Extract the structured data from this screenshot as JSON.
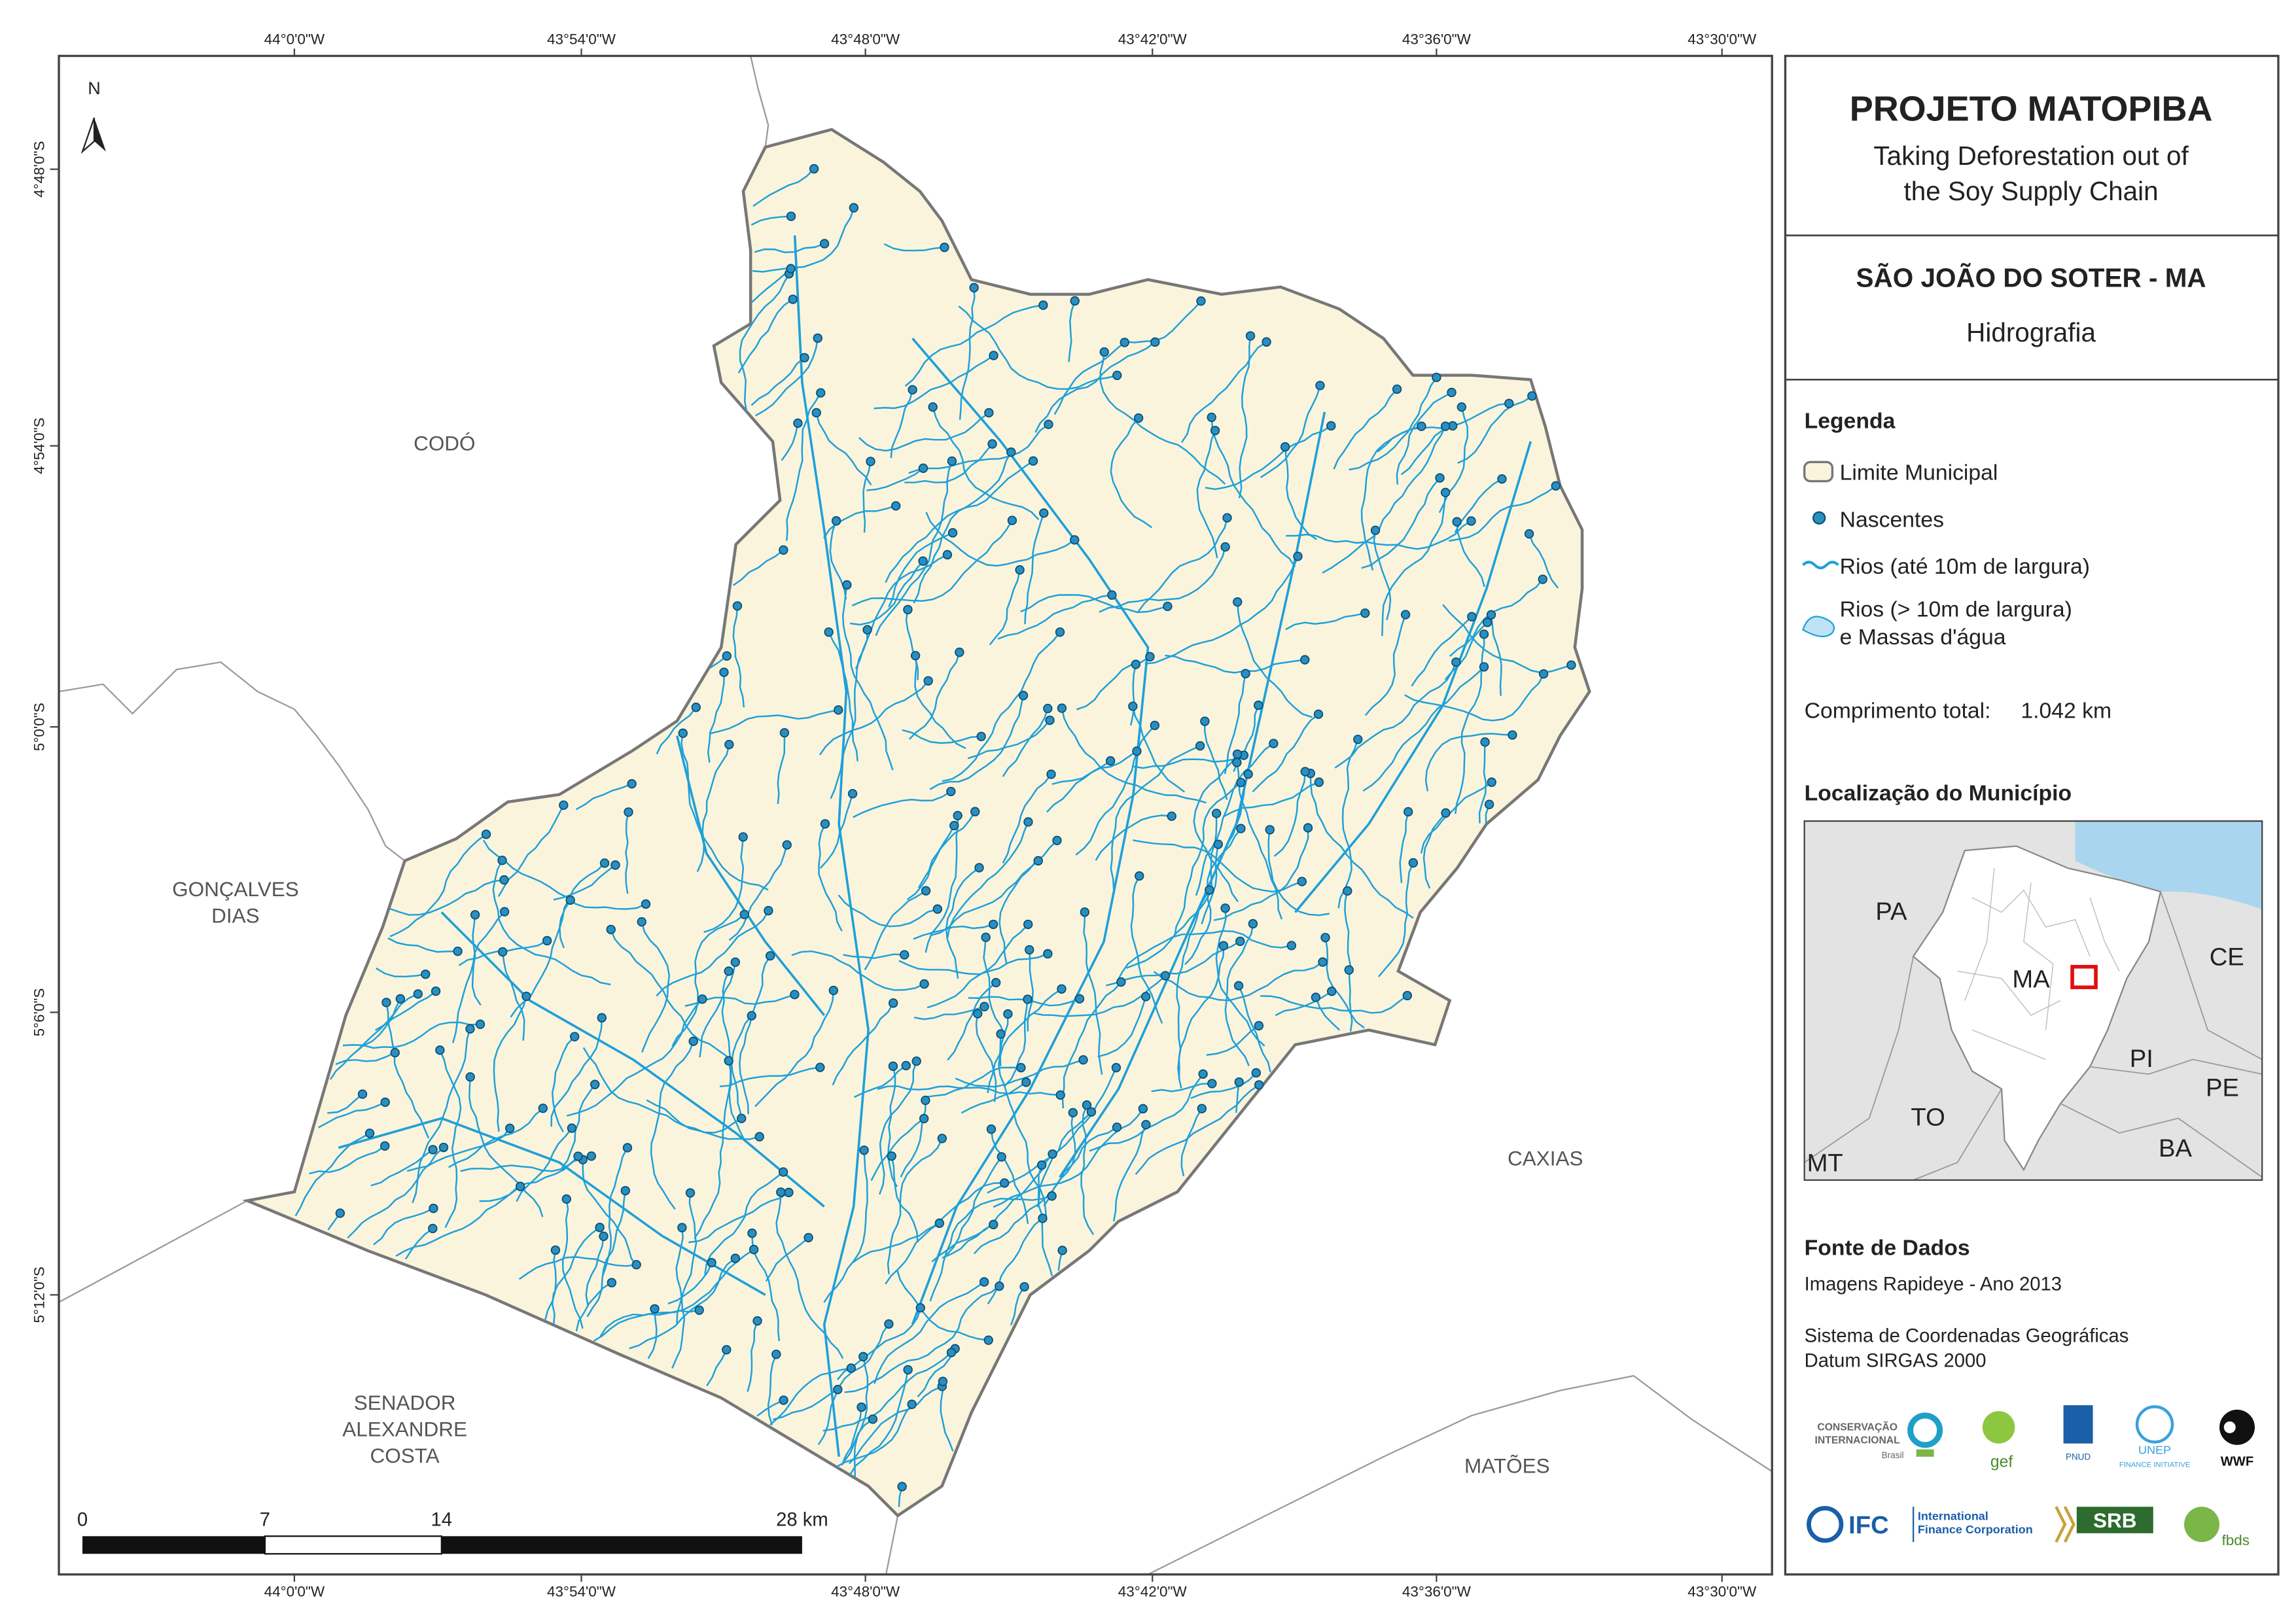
{
  "map": {
    "coords": {
      "top": [
        "44°0'0\"W",
        "43°54'0\"W",
        "43°48'0\"W",
        "43°42'0\"W",
        "43°36'0\"W",
        "43°30'0\"W"
      ],
      "bottom": [
        "44°0'0\"W",
        "43°54'0\"W",
        "43°48'0\"W",
        "43°42'0\"W",
        "43°36'0\"W",
        "43°30'0\"W"
      ],
      "left": [
        "4°48'0\"S",
        "4°54'0\"S",
        "5°0'0\"S",
        "5°6'0\"S",
        "5°12'0\"S"
      ]
    },
    "north": "N",
    "places": [
      {
        "lines": [
          "CODÓ"
        ]
      },
      {
        "lines": [
          "GONÇALVES",
          "DIAS"
        ]
      },
      {
        "lines": [
          "CAXIAS"
        ]
      },
      {
        "lines": [
          "SENADOR",
          "ALEXANDRE",
          "COSTA"
        ]
      },
      {
        "lines": [
          "MATÕES"
        ]
      }
    ],
    "scale_bar": [
      "0",
      "7",
      "14",
      "28 km"
    ]
  },
  "panel": {
    "title": "PROJETO MATOPIBA",
    "subtitle": [
      "Taking Deforestation out of",
      "the Soy Supply Chain"
    ],
    "municipality": "SÃO JOÃO DO SOTER - MA",
    "theme": "Hidrografia",
    "legend": {
      "title": "Legenda",
      "items": [
        "Limite Municipal",
        "Nascentes",
        "Rios (até 10m de largura)",
        "Rios (> 10m de largura)",
        "e Massas d'água"
      ],
      "length_label": "Comprimento total:",
      "length_value": "1.042 km"
    },
    "location": {
      "title": "Localização do Município",
      "labels": [
        "PA",
        "MA",
        "CE",
        "PI",
        "PE",
        "TO",
        "BA",
        "MT"
      ]
    },
    "sources": {
      "title": "Fonte de Dados",
      "lines": [
        "Imagens Rapideye - Ano 2013",
        "Sistema de Coordenadas Geográficas",
        "Datum SIRGAS 2000"
      ]
    },
    "logos": [
      "CONSERVAÇÃO",
      "INTERNACIONAL",
      "Brasil",
      "gef",
      "PNUD",
      "UNEP",
      "FINANCE INITIATIVE",
      "WWF",
      "IFC",
      "International",
      "Finance Corporation",
      "SRB",
      "fbds"
    ]
  }
}
